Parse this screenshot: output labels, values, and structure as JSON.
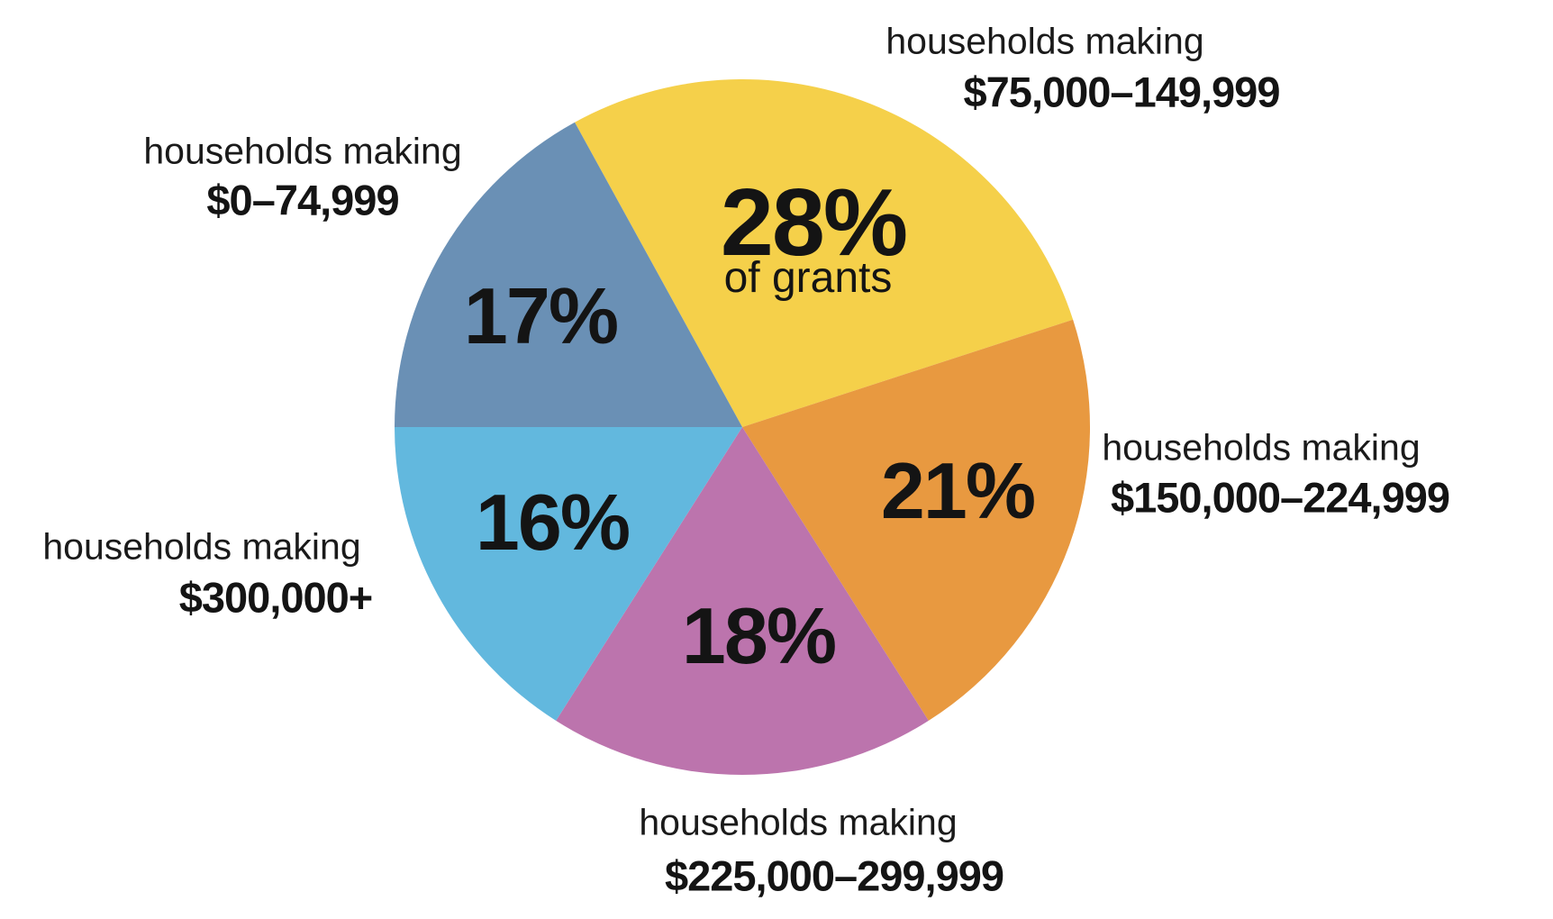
{
  "chart_data": {
    "type": "pie",
    "title": "",
    "total": 100,
    "start_angle_deg": 118.8,
    "direction": "clockwise",
    "legend_position": "labels-around-pie",
    "slices": [
      {
        "name": "households making $75,000-149,999",
        "label_line1": "households making",
        "label_line2": "$75,000–149,999",
        "value": 28,
        "percent_label": "28%",
        "sublabel": "of grants",
        "color": "#F5D04A"
      },
      {
        "name": "households making $150,000-224,999",
        "label_line1": "households making",
        "label_line2": "$150,000–224,999",
        "value": 21,
        "percent_label": "21%",
        "color": "#E89940"
      },
      {
        "name": "households making $225,000-299,999",
        "label_line1": "households making",
        "label_line2": "$225,000–299,999",
        "value": 18,
        "percent_label": "18%",
        "color": "#BC74AD"
      },
      {
        "name": "households making $300,000+",
        "label_line1": "households making",
        "label_line2": "$300,000+",
        "value": 16,
        "percent_label": "16%",
        "color": "#62B8DE"
      },
      {
        "name": "households making $0-74,999",
        "label_line1": "households making",
        "label_line2": "$0–74,999",
        "value": 17,
        "percent_label": "17%",
        "color": "#6A90B5"
      }
    ],
    "colors": {
      "background": "#FFFFFF",
      "text": "#141414"
    }
  }
}
